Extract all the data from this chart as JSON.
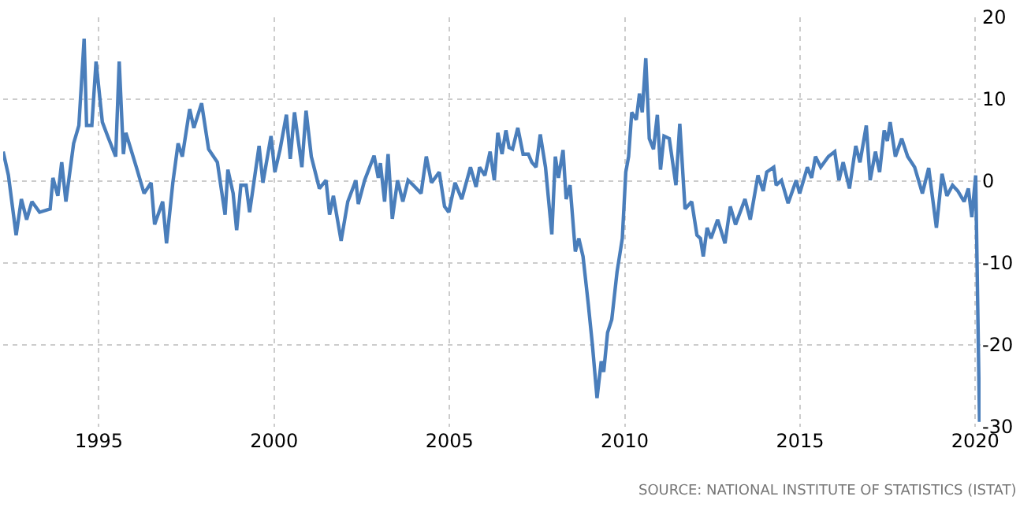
{
  "chart_data": {
    "type": "line",
    "annotations": [
      "SOURCE: NATIONAL INSTITUTE OF STATISTICS (ISTAT)"
    ],
    "xlim": [
      1992.27,
      2020.15
    ],
    "xticks": [
      1995,
      2000,
      2005,
      2010,
      2015,
      2020
    ],
    "ylim": [
      -30,
      20
    ],
    "yticks": [
      -30,
      -20,
      -10,
      0,
      10,
      20
    ],
    "grid": true,
    "marker": "none",
    "line_style": "solid",
    "series": [
      {
        "color": "#4a7ebb",
        "x": [
          1992.27,
          1992.42,
          1992.64,
          1992.79,
          1992.94,
          1993.09,
          1993.31,
          1993.61,
          1993.69,
          1993.83,
          1993.94,
          1994.06,
          1994.28,
          1994.43,
          1994.58,
          1994.65,
          1994.8,
          1994.92,
          1995.1,
          1995.25,
          1995.48,
          1995.58,
          1995.7,
          1995.77,
          1996.07,
          1996.29,
          1996.49,
          1996.59,
          1996.82,
          1996.93,
          1997.11,
          1997.26,
          1997.38,
          1997.59,
          1997.71,
          1997.93,
          1998.13,
          1998.38,
          1998.6,
          1998.68,
          1998.83,
          1998.93,
          1999.05,
          1999.2,
          1999.3,
          1999.57,
          1999.68,
          1999.91,
          2000.02,
          2000.17,
          2000.35,
          2000.46,
          2000.58,
          2000.79,
          2000.91,
          2001.06,
          2001.29,
          2001.48,
          2001.58,
          2001.69,
          2001.91,
          2002.1,
          2002.33,
          2002.4,
          2002.58,
          2002.85,
          2002.97,
          2003.03,
          2003.15,
          2003.25,
          2003.37,
          2003.52,
          2003.67,
          2003.82,
          2003.97,
          2004.19,
          2004.34,
          2004.49,
          2004.71,
          2004.86,
          2004.98,
          2005.16,
          2005.35,
          2005.6,
          2005.76,
          2005.86,
          2006.01,
          2006.16,
          2006.28,
          2006.38,
          2006.5,
          2006.61,
          2006.7,
          2006.8,
          2006.95,
          2007.1,
          2007.25,
          2007.35,
          2007.47,
          2007.59,
          2007.74,
          2007.92,
          2008.02,
          2008.11,
          2008.24,
          2008.33,
          2008.44,
          2008.59,
          2008.69,
          2008.81,
          2008.96,
          2009.08,
          2009.21,
          2009.33,
          2009.4,
          2009.51,
          2009.63,
          2009.78,
          2009.93,
          2010.03,
          2010.11,
          2010.2,
          2010.33,
          2010.42,
          2010.5,
          2010.6,
          2010.7,
          2010.82,
          2010.93,
          2011.02,
          2011.12,
          2011.27,
          2011.46,
          2011.57,
          2011.72,
          2011.91,
          2012.06,
          2012.16,
          2012.24,
          2012.35,
          2012.46,
          2012.65,
          2012.86,
          2013.01,
          2013.16,
          2013.43,
          2013.58,
          2013.8,
          2013.95,
          2014.05,
          2014.25,
          2014.32,
          2014.47,
          2014.66,
          2014.89,
          2014.99,
          2015.21,
          2015.33,
          2015.44,
          2015.59,
          2015.81,
          2015.99,
          2016.11,
          2016.23,
          2016.41,
          2016.59,
          2016.71,
          2016.89,
          2017.0,
          2017.15,
          2017.27,
          2017.4,
          2017.49,
          2017.57,
          2017.72,
          2017.9,
          2018.07,
          2018.27,
          2018.49,
          2018.67,
          2018.89,
          2019.05,
          2019.19,
          2019.35,
          2019.5,
          2019.68,
          2019.8,
          2019.9,
          2020.01,
          2020.12
        ],
        "values": [
          3.6,
          0.7,
          -6.6,
          -2.2,
          -4.7,
          -2.5,
          -3.8,
          -3.4,
          0.4,
          -1.8,
          2.3,
          -2.5,
          4.6,
          6.8,
          17.4,
          6.8,
          6.8,
          14.6,
          7.2,
          5.5,
          3.0,
          14.6,
          3.3,
          5.9,
          1.7,
          -1.5,
          -0.2,
          -5.3,
          -2.5,
          -7.6,
          -0.2,
          4.6,
          3.0,
          8.8,
          6.5,
          9.5,
          3.9,
          2.3,
          -4.1,
          1.4,
          -1.5,
          -6.0,
          -0.5,
          -0.5,
          -3.8,
          4.3,
          -0.2,
          5.5,
          1.1,
          3.9,
          8.1,
          2.7,
          8.4,
          1.7,
          8.6,
          3.0,
          -0.9,
          0.1,
          -4.1,
          -1.8,
          -7.3,
          -2.5,
          0.1,
          -2.8,
          0.1,
          3.1,
          0.4,
          2.2,
          -2.5,
          3.3,
          -4.6,
          0.1,
          -2.5,
          0.1,
          -0.5,
          -1.5,
          3.0,
          -0.2,
          1.1,
          -3.1,
          -3.8,
          -0.2,
          -2.2,
          1.7,
          -0.7,
          1.7,
          0.7,
          3.6,
          0.1,
          5.9,
          3.3,
          6.2,
          4.1,
          3.9,
          6.5,
          3.3,
          3.3,
          2.3,
          1.7,
          5.7,
          1.7,
          -6.5,
          3.0,
          0.4,
          3.8,
          -2.2,
          -0.5,
          -8.6,
          -7.0,
          -9.2,
          -15.0,
          -20.1,
          -26.5,
          -22.0,
          -23.3,
          -18.5,
          -16.9,
          -11.1,
          -7.0,
          1.1,
          3.0,
          8.4,
          7.5,
          10.7,
          8.4,
          15.0,
          5.2,
          3.9,
          8.1,
          1.4,
          5.5,
          5.2,
          -0.5,
          7.0,
          -3.4,
          -2.5,
          -6.6,
          -7.0,
          -9.2,
          -5.7,
          -7.0,
          -4.7,
          -7.6,
          -3.1,
          -5.3,
          -2.2,
          -4.7,
          0.7,
          -1.2,
          1.1,
          1.7,
          -0.5,
          0.1,
          -2.7,
          0.1,
          -1.5,
          1.7,
          0.4,
          3.0,
          1.7,
          3.0,
          3.6,
          0.1,
          2.3,
          -0.9,
          4.3,
          2.3,
          6.8,
          0.1,
          3.6,
          1.1,
          6.2,
          4.9,
          7.2,
          3.0,
          5.2,
          3.0,
          1.7,
          -1.5,
          1.6,
          -5.7,
          0.9,
          -1.8,
          -0.5,
          -1.2,
          -2.5,
          -0.9,
          -4.4,
          0.7,
          -29.4
        ]
      }
    ]
  }
}
